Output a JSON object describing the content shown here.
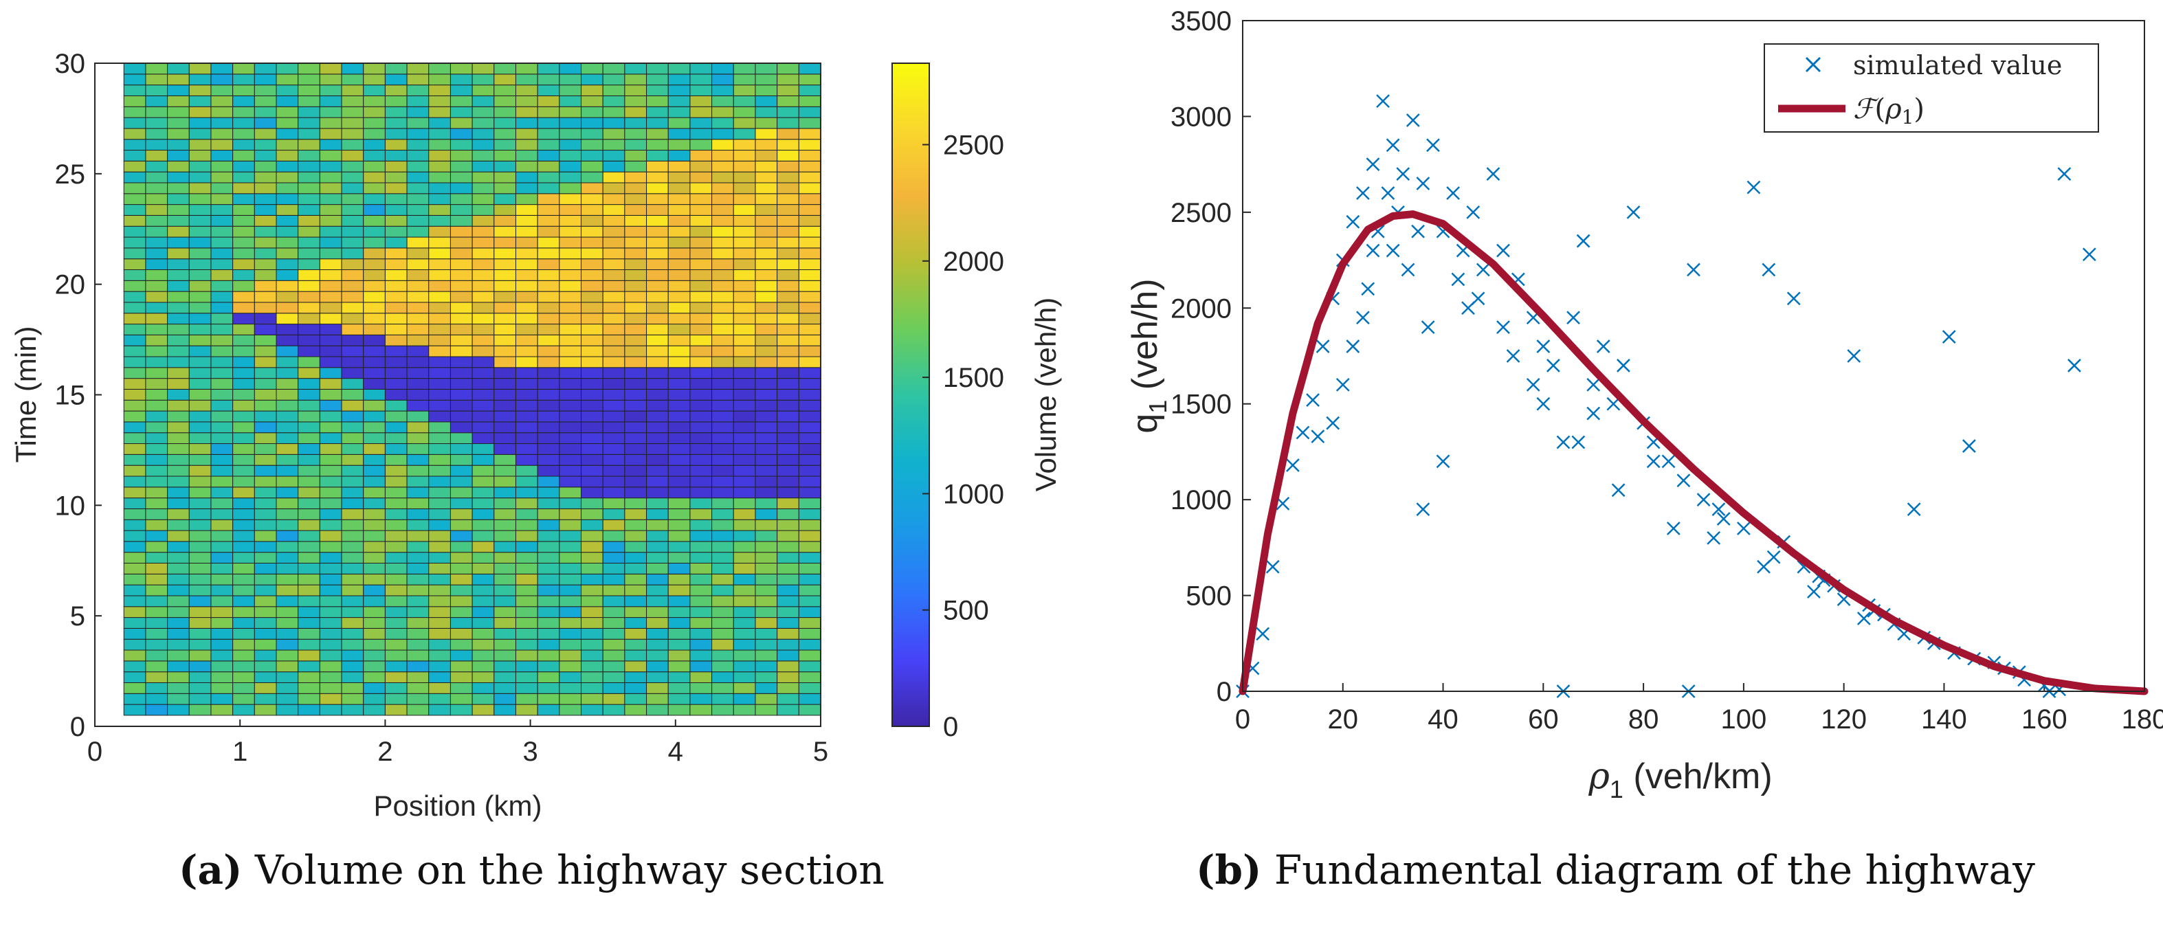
{
  "chart_data": [
    {
      "type": "heatmap",
      "panel": "(a)",
      "caption_label": "(a)",
      "caption": "Volume on the highway section",
      "xlabel": "Position (km)",
      "ylabel": "Time (min)",
      "xlim": [
        0,
        5
      ],
      "ylim": [
        0,
        30
      ],
      "xticks": [
        "0",
        "1",
        "2",
        "3",
        "4",
        "5"
      ],
      "yticks": [
        "0",
        "5",
        "10",
        "15",
        "20",
        "25",
        "30"
      ],
      "grid": {
        "columns": 32,
        "rows": 60,
        "x_start_km": 0.2,
        "x_end_km": 5.0,
        "t_start_min": 0.5,
        "t_end_min": 30.0
      },
      "colorbar": {
        "label": "Volume (veh/h)",
        "range": [
          0,
          2850
        ],
        "ticks": [
          "0",
          "500",
          "1000",
          "1500",
          "2000",
          "2500"
        ]
      },
      "colormap": [
        "#3e26a8",
        "#4743f8",
        "#2d75fb",
        "#1a9ae6",
        "#11b2cd",
        "#2fc4a2",
        "#6ccd5a",
        "#b8c035",
        "#f3b53a",
        "#f9d72c",
        "#f9fb0e"
      ],
      "regions": [
        {
          "name": "free-flow",
          "volume_range_veh_h": [
            1100,
            2000
          ]
        },
        {
          "name": "jam",
          "volume_veh_h": 120,
          "start_km": 0.9,
          "t_min_range": [
            10.5,
            19.0
          ]
        },
        {
          "name": "queue-discharge",
          "volume_range_veh_h": [
            2100,
            2700
          ],
          "t_min_range": [
            16.0,
            27.0
          ]
        }
      ]
    },
    {
      "type": "scatter",
      "panel": "(b)",
      "caption_label": "(b)",
      "caption": "Fundamental diagram of the highway",
      "xlabel": "ρ1 (veh/km)",
      "ylabel": "q1 (veh/h)",
      "xlim": [
        0,
        180
      ],
      "ylim": [
        0,
        3500
      ],
      "xticks": [
        "0",
        "20",
        "40",
        "60",
        "80",
        "100",
        "120",
        "140",
        "160",
        "180"
      ],
      "yticks": [
        "0",
        "500",
        "1000",
        "1500",
        "2000",
        "2500",
        "3000",
        "3500"
      ],
      "legend": {
        "position": "top-right",
        "entries": [
          "simulated value",
          "F(ρ1)"
        ]
      },
      "series": [
        {
          "name": "simulated value",
          "marker": "x",
          "color": "#0072bd",
          "points": [
            [
              0,
              0
            ],
            [
              2,
              120
            ],
            [
              4,
              300
            ],
            [
              6,
              650
            ],
            [
              8,
              980
            ],
            [
              10,
              1180
            ],
            [
              12,
              1350
            ],
            [
              14,
              1520
            ],
            [
              16,
              1800
            ],
            [
              18,
              2050
            ],
            [
              20,
              2250
            ],
            [
              22,
              2450
            ],
            [
              24,
              2600
            ],
            [
              26,
              2750
            ],
            [
              28,
              3080
            ],
            [
              30,
              2850
            ],
            [
              32,
              2700
            ],
            [
              34,
              2980
            ],
            [
              36,
              2650
            ],
            [
              38,
              2850
            ],
            [
              40,
              2400
            ],
            [
              42,
              2600
            ],
            [
              44,
              2300
            ],
            [
              46,
              2500
            ],
            [
              48,
              2200
            ],
            [
              50,
              2700
            ],
            [
              52,
              2300
            ],
            [
              55,
              2150
            ],
            [
              58,
              1950
            ],
            [
              60,
              1800
            ],
            [
              62,
              1700
            ],
            [
              64,
              1300
            ],
            [
              66,
              1950
            ],
            [
              68,
              2350
            ],
            [
              70,
              1600
            ],
            [
              72,
              1800
            ],
            [
              74,
              1500
            ],
            [
              76,
              1700
            ],
            [
              78,
              2500
            ],
            [
              80,
              1400
            ],
            [
              82,
              1300
            ],
            [
              85,
              1200
            ],
            [
              88,
              1100
            ],
            [
              89,
              0
            ],
            [
              90,
              2200
            ],
            [
              92,
              1000
            ],
            [
              95,
              950
            ],
            [
              100,
              850
            ],
            [
              102,
              2630
            ],
            [
              105,
              2200
            ],
            [
              108,
              780
            ],
            [
              110,
              2050
            ],
            [
              112,
              650
            ],
            [
              115,
              600
            ],
            [
              118,
              550
            ],
            [
              120,
              480
            ],
            [
              122,
              1750
            ],
            [
              125,
              450
            ],
            [
              128,
              400
            ],
            [
              130,
              350
            ],
            [
              134,
              950
            ],
            [
              138,
              250
            ],
            [
              141,
              1850
            ],
            [
              145,
              1280
            ],
            [
              150,
              150
            ],
            [
              155,
              100
            ],
            [
              160,
              30
            ],
            [
              163,
              10
            ],
            [
              164,
              2700
            ],
            [
              166,
              1700
            ],
            [
              169,
              2280
            ],
            [
              64,
              0
            ],
            [
              36,
              950
            ],
            [
              40,
              1200
            ],
            [
              30,
              2300
            ],
            [
              25,
              2100
            ],
            [
              22,
              1800
            ],
            [
              18,
              1400
            ],
            [
              15,
              1330
            ],
            [
              20,
              1600
            ],
            [
              26,
              2300
            ],
            [
              33,
              2200
            ],
            [
              45,
              2000
            ],
            [
              52,
              1900
            ],
            [
              58,
              1600
            ],
            [
              70,
              1450
            ],
            [
              82,
              1200
            ],
            [
              96,
              900
            ],
            [
              106,
              700
            ],
            [
              116,
              580
            ],
            [
              126,
              420
            ],
            [
              136,
              280
            ],
            [
              146,
              170
            ],
            [
              156,
              60
            ],
            [
              161,
              0
            ],
            [
              24,
              1950
            ],
            [
              27,
              2400
            ],
            [
              29,
              2600
            ],
            [
              31,
              2500
            ],
            [
              35,
              2400
            ],
            [
              37,
              1900
            ],
            [
              43,
              2150
            ],
            [
              47,
              2050
            ],
            [
              54,
              1750
            ],
            [
              60,
              1500
            ],
            [
              67,
              1300
            ],
            [
              75,
              1050
            ],
            [
              86,
              850
            ],
            [
              94,
              800
            ],
            [
              104,
              650
            ],
            [
              114,
              520
            ],
            [
              124,
              380
            ],
            [
              132,
              300
            ],
            [
              142,
              200
            ],
            [
              152,
              120
            ]
          ]
        },
        {
          "name": "F(ρ1)",
          "type": "line",
          "color": "#a2142f",
          "points": [
            [
              0,
              0
            ],
            [
              5,
              820
            ],
            [
              10,
              1450
            ],
            [
              15,
              1920
            ],
            [
              20,
              2230
            ],
            [
              25,
              2410
            ],
            [
              30,
              2480
            ],
            [
              34,
              2490
            ],
            [
              40,
              2440
            ],
            [
              50,
              2230
            ],
            [
              60,
              1960
            ],
            [
              70,
              1680
            ],
            [
              80,
              1410
            ],
            [
              90,
              1160
            ],
            [
              100,
              930
            ],
            [
              110,
              720
            ],
            [
              120,
              530
            ],
            [
              130,
              370
            ],
            [
              140,
              240
            ],
            [
              150,
              130
            ],
            [
              160,
              55
            ],
            [
              170,
              15
            ],
            [
              180,
              0
            ]
          ]
        }
      ]
    }
  ]
}
